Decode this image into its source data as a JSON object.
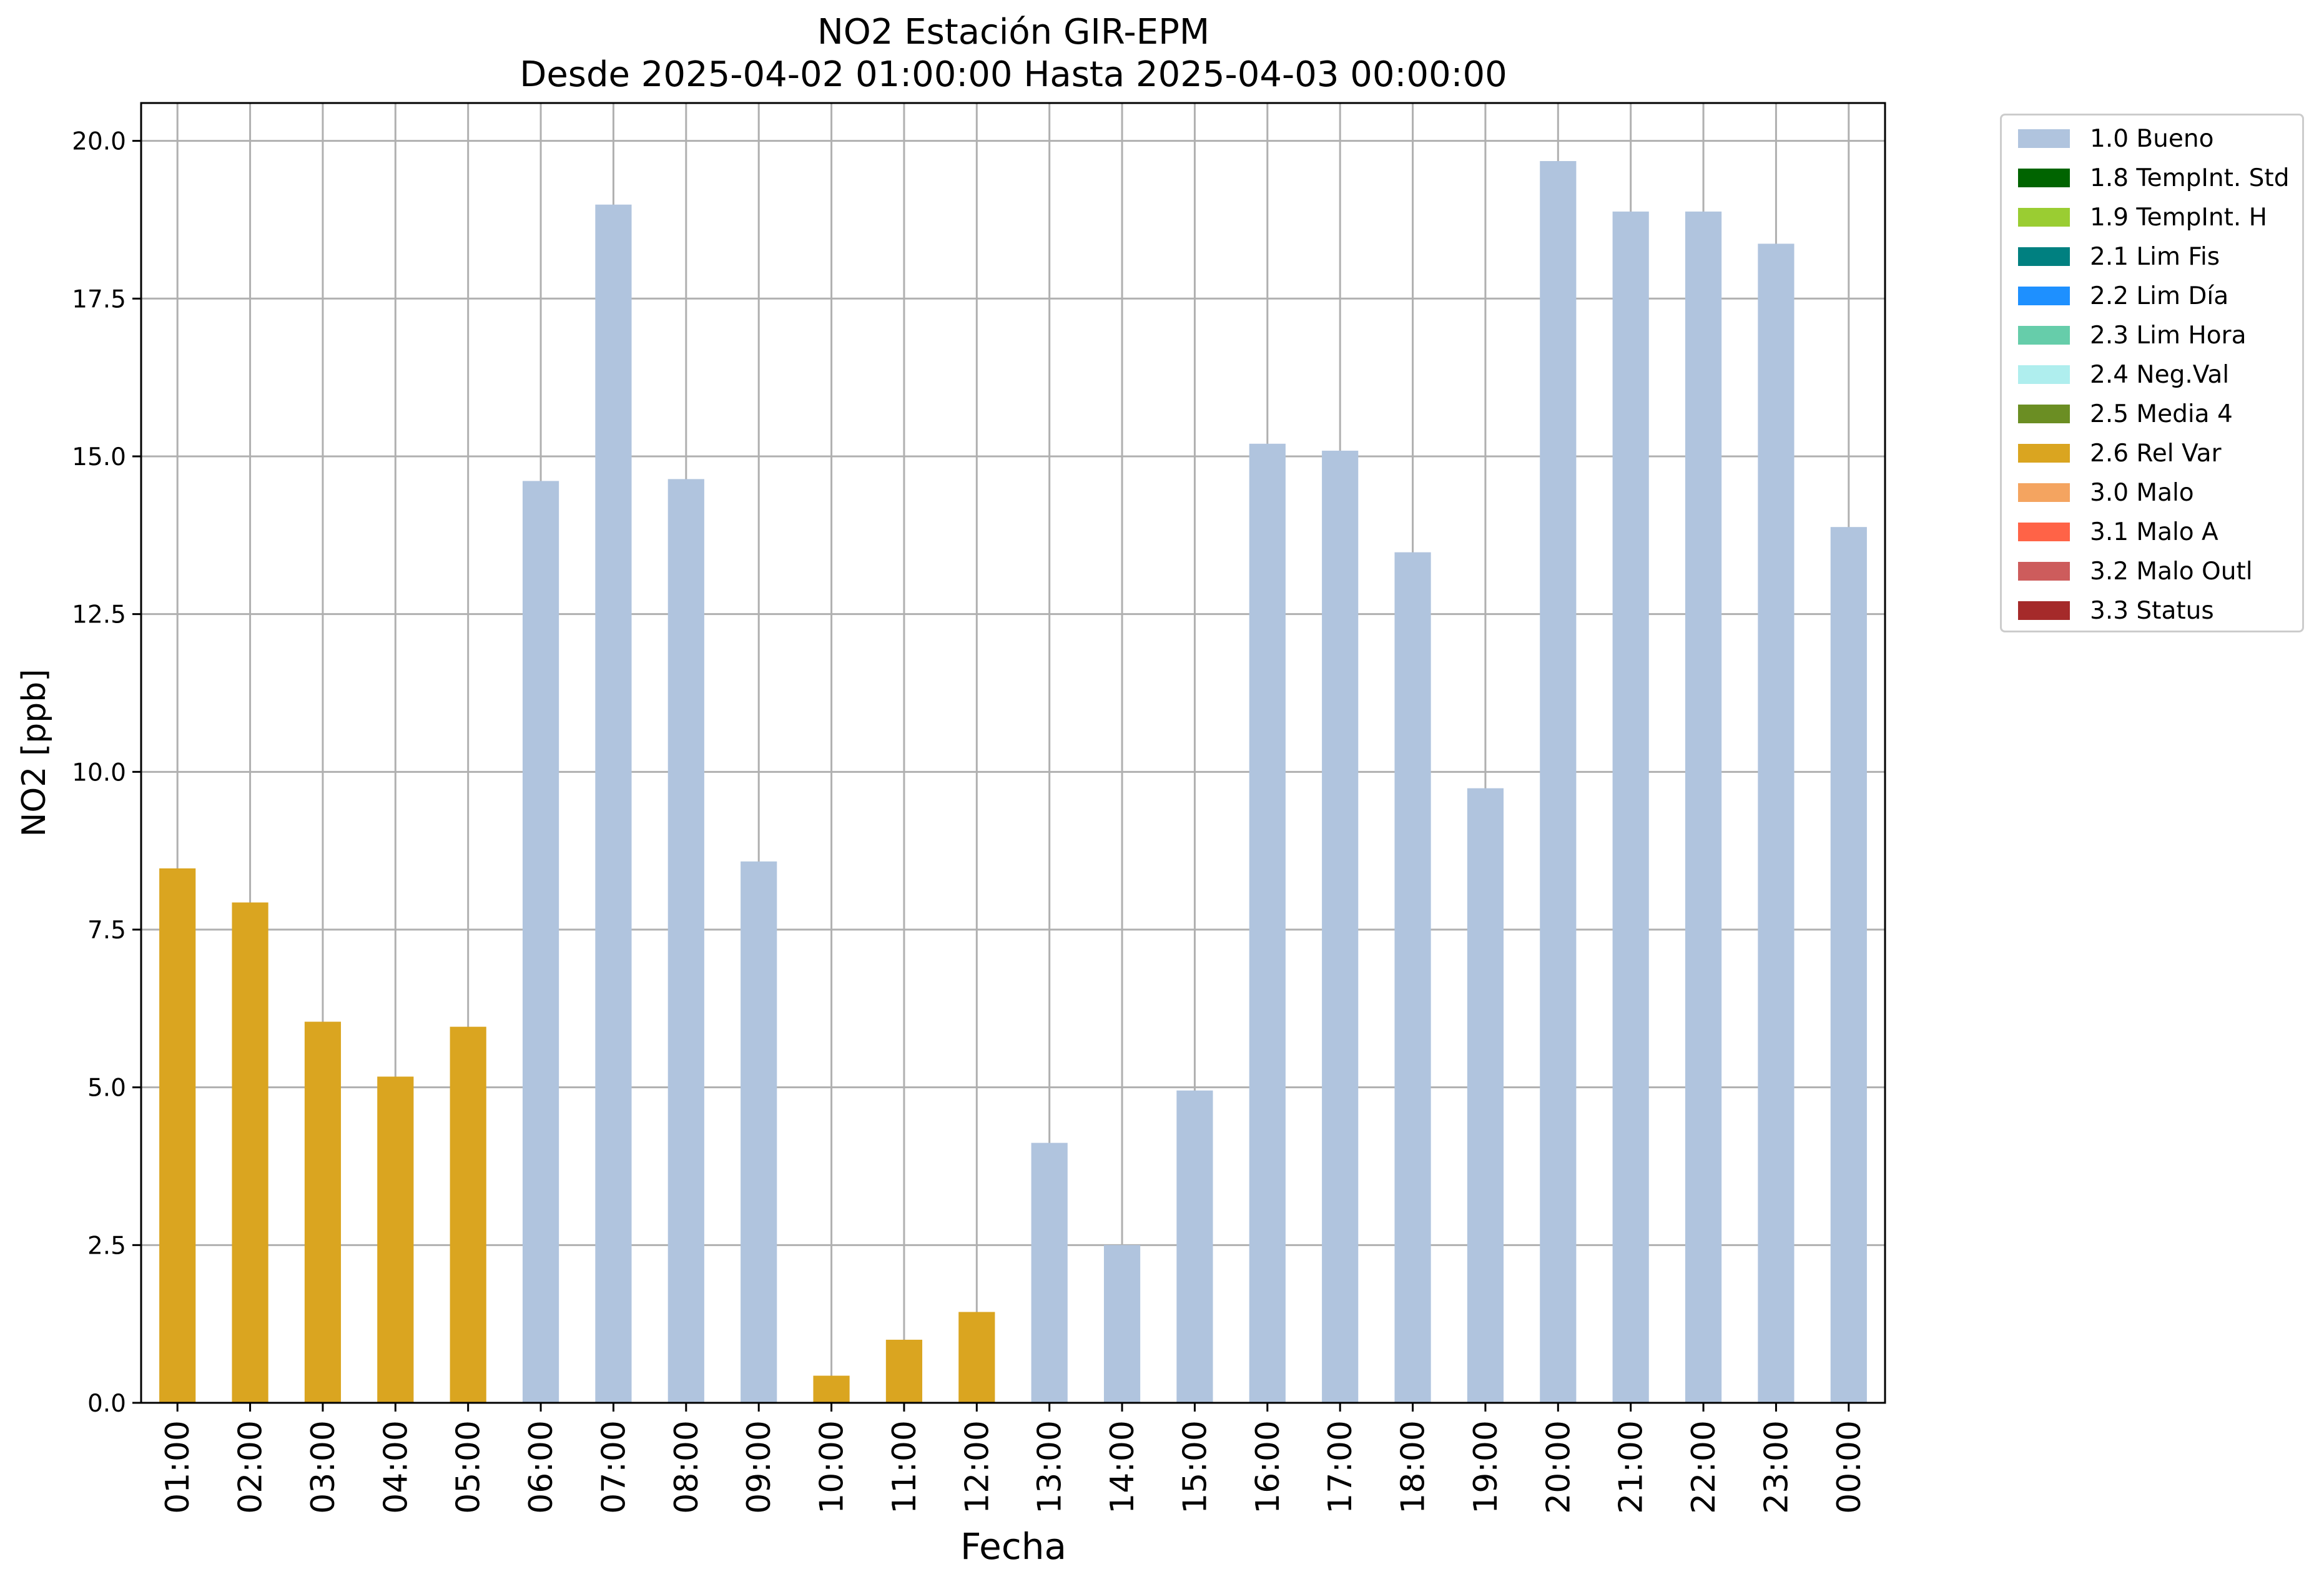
{
  "chart_data": {
    "type": "bar",
    "title": "NO2 Estación GIR-EPM",
    "subtitle": "Desde 2025-04-02 01:00:00 Hasta 2025-04-03 00:00:00",
    "xlabel": "Fecha",
    "ylabel": "NO2 [ppb]",
    "ylim": [
      0,
      20.6
    ],
    "yticks": [
      "0.0",
      "2.5",
      "5.0",
      "7.5",
      "10.0",
      "12.5",
      "15.0",
      "17.5",
      "20.0"
    ],
    "grid": true,
    "legend_position": "outside-top-right",
    "categories": [
      "01:00",
      "02:00",
      "03:00",
      "04:00",
      "05:00",
      "06:00",
      "07:00",
      "08:00",
      "09:00",
      "10:00",
      "11:00",
      "12:00",
      "13:00",
      "14:00",
      "15:00",
      "16:00",
      "17:00",
      "18:00",
      "19:00",
      "20:00",
      "21:00",
      "22:00",
      "23:00",
      "00:00"
    ],
    "values": [
      8.47,
      7.93,
      6.04,
      5.17,
      5.96,
      14.61,
      18.99,
      14.64,
      8.58,
      0.43,
      1.0,
      1.44,
      4.12,
      2.5,
      4.95,
      15.2,
      15.09,
      13.48,
      9.74,
      19.68,
      18.88,
      18.88,
      18.37,
      13.88
    ],
    "flags": [
      "2.6 Rel Var",
      "2.6 Rel Var",
      "2.6 Rel Var",
      "2.6 Rel Var",
      "2.6 Rel Var",
      "1.0 Bueno",
      "1.0 Bueno",
      "1.0 Bueno",
      "1.0 Bueno",
      "2.6 Rel Var",
      "2.6 Rel Var",
      "2.6 Rel Var",
      "1.0 Bueno",
      "1.0 Bueno",
      "1.0 Bueno",
      "1.0 Bueno",
      "1.0 Bueno",
      "1.0 Bueno",
      "1.0 Bueno",
      "1.0 Bueno",
      "1.0 Bueno",
      "1.0 Bueno",
      "1.0 Bueno",
      "1.0 Bueno"
    ],
    "legend": [
      {
        "label": "1.0 Bueno",
        "color": "#b0c4de"
      },
      {
        "label": "1.8 TempInt. Std",
        "color": "#006400"
      },
      {
        "label": "1.9 TempInt. H",
        "color": "#9acd32"
      },
      {
        "label": "2.1 Lim Fis",
        "color": "#008080"
      },
      {
        "label": "2.2 Lim Día",
        "color": "#1e90ff"
      },
      {
        "label": "2.3 Lim Hora",
        "color": "#66cdaa"
      },
      {
        "label": "2.4 Neg.Val",
        "color": "#afeeee"
      },
      {
        "label": "2.5 Media 4",
        "color": "#6b8e23"
      },
      {
        "label": "2.6 Rel Var",
        "color": "#daa520"
      },
      {
        "label": "3.0 Malo",
        "color": "#f4a460"
      },
      {
        "label": "3.1 Malo A",
        "color": "#ff6347"
      },
      {
        "label": "3.2 Malo Outl",
        "color": "#cd5c5c"
      },
      {
        "label": "3.3 Status",
        "color": "#a52a2a"
      }
    ]
  }
}
